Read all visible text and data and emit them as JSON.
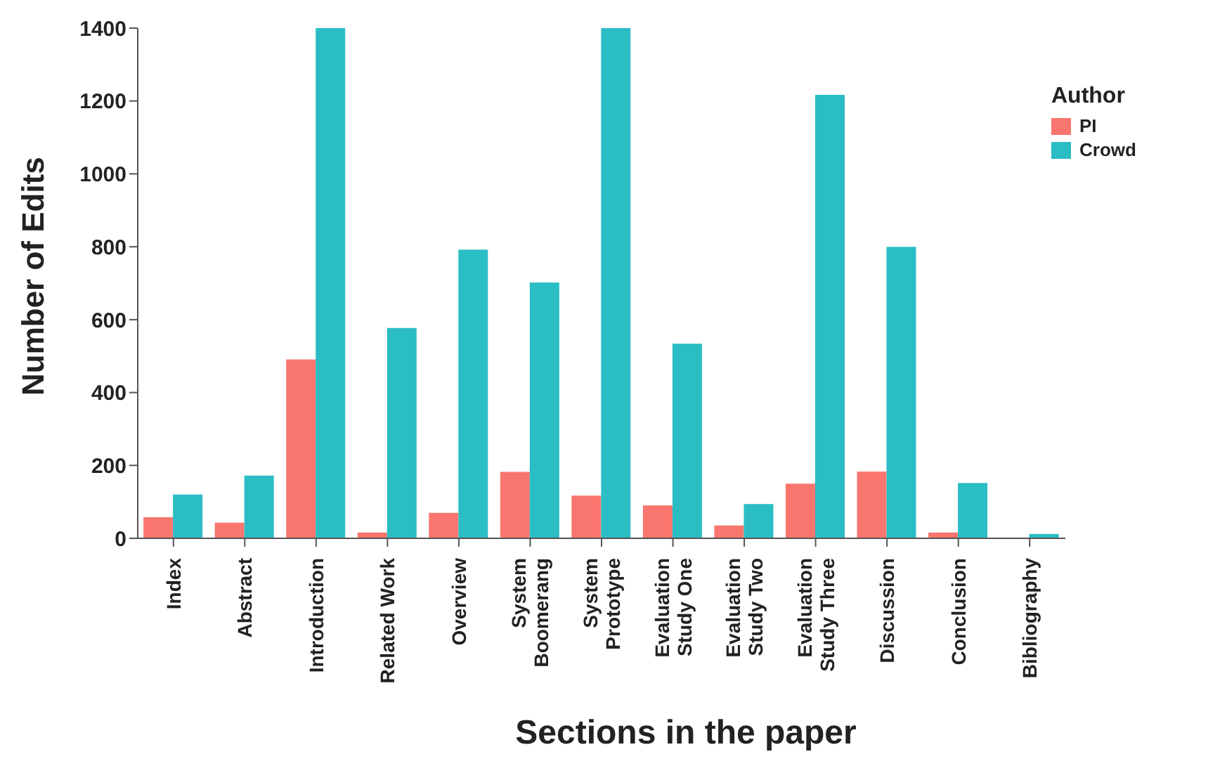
{
  "chart_data": {
    "type": "bar",
    "xlabel": "Sections in the paper",
    "ylabel": "Number of Edits",
    "legend_title": "Author",
    "categories": [
      "Index",
      "Abstract",
      "Introduction",
      "Related Work",
      "Overview",
      "System Boomerang",
      "System Prototype",
      "Evaluation Study One",
      "Evaluation Study Two",
      "Evaluation Study Three",
      "Discussion",
      "Conclusion",
      "Bibliography"
    ],
    "series": [
      {
        "name": "PI",
        "color": "#f8766d",
        "values": [
          58,
          43,
          491,
          16,
          70,
          182,
          117,
          90,
          35,
          150,
          183,
          16,
          0
        ]
      },
      {
        "name": "Crowd",
        "color": "#2bbdc4",
        "values": [
          120,
          172,
          1400,
          577,
          792,
          702,
          1400,
          534,
          94,
          1217,
          800,
          152,
          12
        ]
      }
    ],
    "ylim": [
      0,
      1400
    ],
    "yticks": [
      0,
      200,
      400,
      600,
      800,
      1000,
      1200,
      1400
    ],
    "grid": false,
    "legend": "top right"
  }
}
